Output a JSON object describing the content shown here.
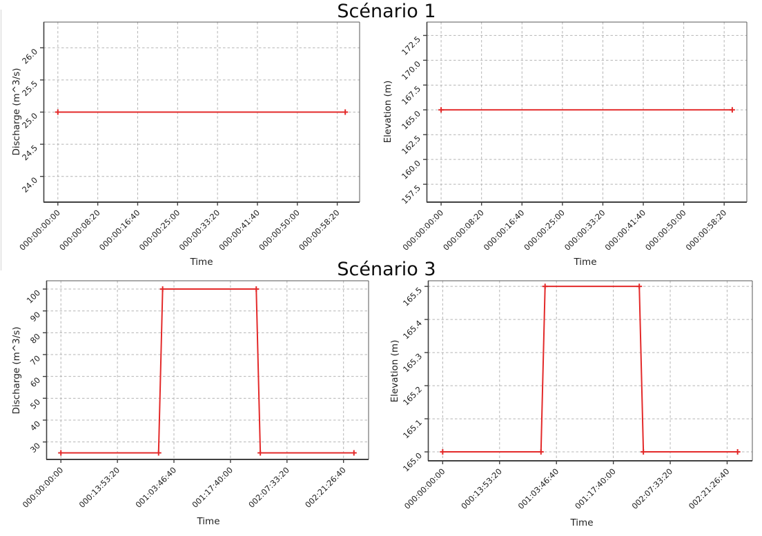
{
  "figure": {
    "background_color": "#ffffff",
    "line_color": "#e32929",
    "grid_color": "#b4b4b4",
    "spine_color": "#3f3f3f",
    "text_color": "#202020"
  },
  "chart_data": [
    {
      "id": "scenario1-discharge",
      "type": "line",
      "figure_title": "Scénario 1",
      "xlabel": "Time",
      "ylabel": "Discharge (m^3/s)",
      "line_color": "#e32929",
      "marker": "plus",
      "grid": true,
      "legend": "none",
      "xlim": [
        -180,
        3780
      ],
      "ylim": [
        23.6,
        26.4
      ],
      "xticks": [
        {
          "v": 0,
          "label": "000:00:00:00"
        },
        {
          "v": 500,
          "label": "000:00:08:20"
        },
        {
          "v": 1000,
          "label": "000:00:16:40"
        },
        {
          "v": 1500,
          "label": "000:00:25:00"
        },
        {
          "v": 2000,
          "label": "000:00:33:20"
        },
        {
          "v": 2500,
          "label": "000:00:41:40"
        },
        {
          "v": 3000,
          "label": "000:00:50:00"
        },
        {
          "v": 3500,
          "label": "000:00:58:20"
        }
      ],
      "yticks": [
        {
          "v": 24.0,
          "label": "24.0"
        },
        {
          "v": 24.5,
          "label": "24.5"
        },
        {
          "v": 25.0,
          "label": "25.0"
        },
        {
          "v": 25.5,
          "label": "25.5"
        },
        {
          "v": 26.0,
          "label": "26.0"
        }
      ],
      "series": [
        {
          "name": "discharge",
          "x_seconds": [
            0,
            3600
          ],
          "x_labels": [
            "000:00:00:00",
            "000:01:00:00"
          ],
          "y": [
            25,
            25
          ]
        }
      ]
    },
    {
      "id": "scenario1-elevation",
      "type": "line",
      "figure_title": "Scénario 1",
      "xlabel": "Time",
      "ylabel": "Elevation (m)",
      "line_color": "#e32929",
      "marker": "plus",
      "grid": true,
      "legend": "none",
      "xlim": [
        -180,
        3780
      ],
      "ylim": [
        155.7,
        173.85
      ],
      "xticks": [
        {
          "v": 0,
          "label": "000:00:00:00"
        },
        {
          "v": 500,
          "label": "000:00:08:20"
        },
        {
          "v": 1000,
          "label": "000:00:16:40"
        },
        {
          "v": 1500,
          "label": "000:00:25:00"
        },
        {
          "v": 2000,
          "label": "000:00:33:20"
        },
        {
          "v": 2500,
          "label": "000:00:41:40"
        },
        {
          "v": 3000,
          "label": "000:00:50:00"
        },
        {
          "v": 3500,
          "label": "000:00:58:20"
        }
      ],
      "yticks": [
        {
          "v": 157.5,
          "label": "157.5"
        },
        {
          "v": 160.0,
          "label": "160.0"
        },
        {
          "v": 162.5,
          "label": "162.5"
        },
        {
          "v": 165.0,
          "label": "165.0"
        },
        {
          "v": 167.5,
          "label": "167.5"
        },
        {
          "v": 170.0,
          "label": "170.0"
        },
        {
          "v": 172.5,
          "label": "172.5"
        }
      ],
      "series": [
        {
          "name": "elevation",
          "x_seconds": [
            0,
            3600
          ],
          "x_labels": [
            "000:00:00:00",
            "000:01:00:00"
          ],
          "y": [
            165,
            165
          ]
        }
      ]
    },
    {
      "id": "scenario3-discharge",
      "type": "line",
      "figure_title": "Scénario 3",
      "xlabel": "Time",
      "ylabel": "Discharge (m^3/s)",
      "line_color": "#e32929",
      "marker": "plus",
      "grid": true,
      "legend": "none",
      "xlim": [
        -12960,
        272160
      ],
      "ylim": [
        22,
        103.8
      ],
      "xticks": [
        {
          "v": 0,
          "label": "000:00:00:00"
        },
        {
          "v": 50000,
          "label": "000:13:53:20"
        },
        {
          "v": 100000,
          "label": "001:03:46:40"
        },
        {
          "v": 150000,
          "label": "001:17:40:00"
        },
        {
          "v": 200000,
          "label": "002:07:33:20"
        },
        {
          "v": 250000,
          "label": "002:21:26:40"
        }
      ],
      "yticks": [
        {
          "v": 30,
          "label": "30"
        },
        {
          "v": 40,
          "label": "40"
        },
        {
          "v": 50,
          "label": "50"
        },
        {
          "v": 60,
          "label": "60"
        },
        {
          "v": 70,
          "label": "70"
        },
        {
          "v": 80,
          "label": "80"
        },
        {
          "v": 90,
          "label": "90"
        },
        {
          "v": 100,
          "label": "100"
        }
      ],
      "series": [
        {
          "name": "discharge",
          "x_seconds": [
            0,
            86400,
            90000,
            172800,
            176400,
            259200
          ],
          "x_labels": [
            "000:00:00:00",
            "001:00:00:00",
            "001:01:00:00",
            "002:00:00:00",
            "002:01:00:00",
            "003:00:00:00"
          ],
          "y": [
            25,
            25,
            100,
            100,
            25,
            25
          ]
        }
      ]
    },
    {
      "id": "scenario3-elevation",
      "type": "line",
      "figure_title": "Scénario 3",
      "xlabel": "Time",
      "ylabel": "Elevation (m)",
      "line_color": "#e32929",
      "marker": "plus",
      "grid": true,
      "legend": "none",
      "xlim": [
        -12960,
        272160
      ],
      "ylim": [
        164.973,
        165.517
      ],
      "xticks": [
        {
          "v": 0,
          "label": "000:00:00:00"
        },
        {
          "v": 50000,
          "label": "000:13:53:20"
        },
        {
          "v": 100000,
          "label": "001:03:46:40"
        },
        {
          "v": 150000,
          "label": "001:17:40:00"
        },
        {
          "v": 200000,
          "label": "002:07:33:20"
        },
        {
          "v": 250000,
          "label": "002:21:26:40"
        }
      ],
      "yticks": [
        {
          "v": 165.0,
          "label": "165.0"
        },
        {
          "v": 165.1,
          "label": "165.1"
        },
        {
          "v": 165.2,
          "label": "165.2"
        },
        {
          "v": 165.3,
          "label": "165.3"
        },
        {
          "v": 165.4,
          "label": "165.4"
        },
        {
          "v": 165.5,
          "label": "165.5"
        }
      ],
      "series": [
        {
          "name": "elevation",
          "x_seconds": [
            0,
            86400,
            90000,
            172800,
            176400,
            259200
          ],
          "x_labels": [
            "000:00:00:00",
            "001:00:00:00",
            "001:01:00:00",
            "002:00:00:00",
            "002:01:00:00",
            "003:00:00:00"
          ],
          "y": [
            165.0,
            165.0,
            165.5,
            165.5,
            165.0,
            165.0
          ]
        }
      ]
    }
  ]
}
